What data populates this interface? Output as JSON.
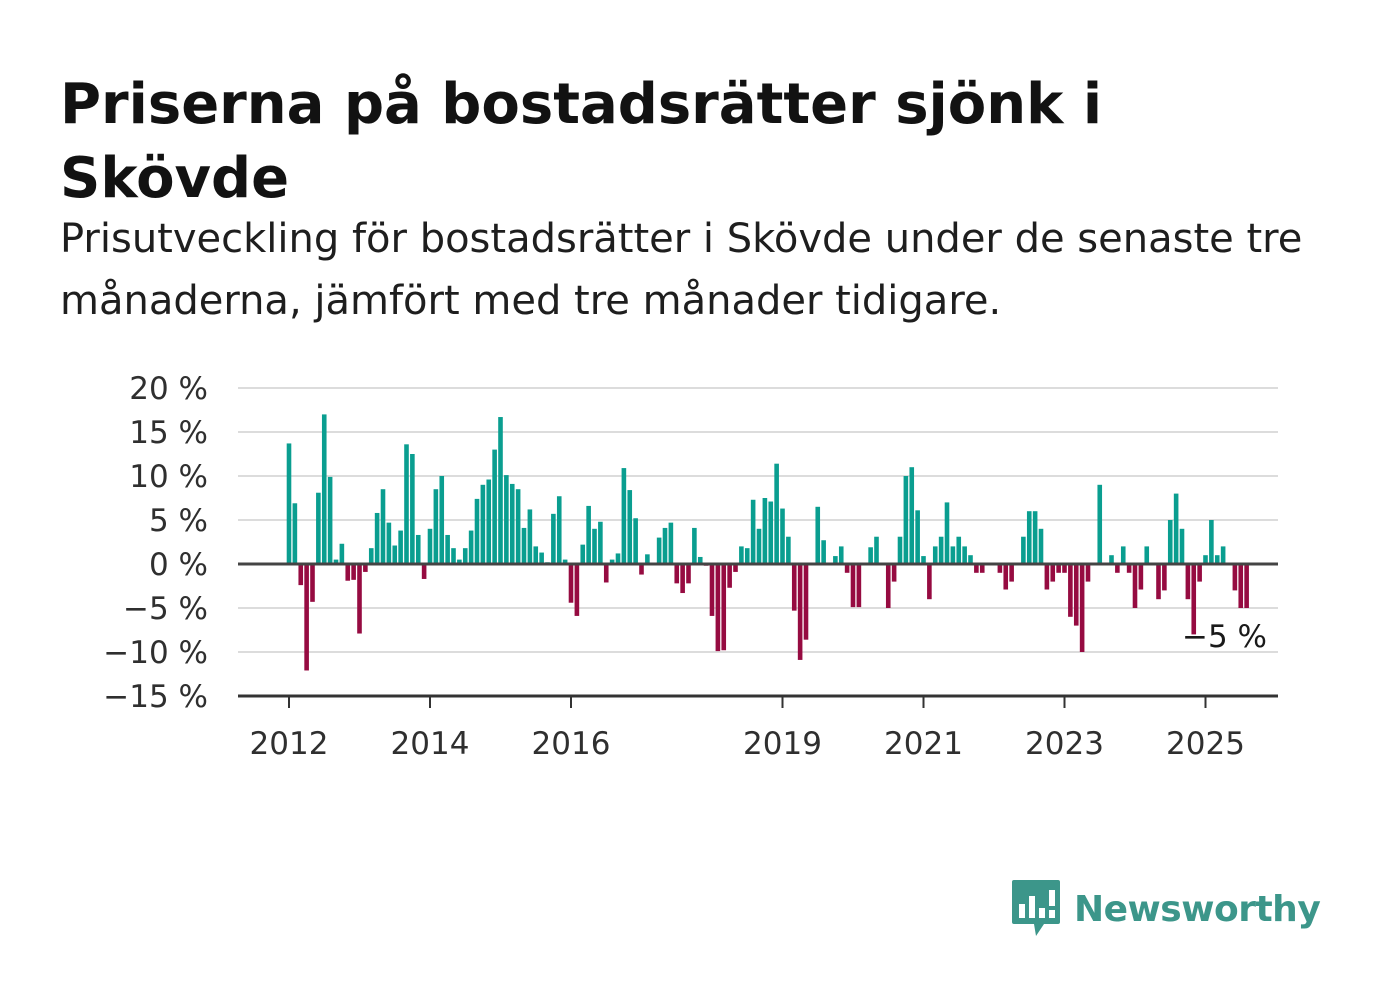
{
  "title": "Priserna på bostadsrätter sjönk i Skövde",
  "subtitle": "Prisutveckling för bostadsrätter i Skövde under de senaste tre månaderna, jämfört med tre månader tidigare.",
  "logo": {
    "text": "Newsworthy",
    "icon": "newsworthy-bar-chart-icon"
  },
  "colors": {
    "positive": "#0a9e90",
    "negative": "#960b41",
    "grid": "#dcdcdc",
    "axis": "#444444",
    "logo": "#3c968a"
  },
  "chart_data": {
    "type": "bar",
    "y_unit": "%",
    "ylim": [
      -15,
      20
    ],
    "y_ticks": [
      20,
      15,
      10,
      5,
      0,
      -5,
      -10,
      -15
    ],
    "y_tick_labels": [
      "20 %",
      "15 %",
      "10 %",
      "5 %",
      "0 %",
      "−5 %",
      "−10 %",
      "−15 %"
    ],
    "x_ticks": [
      {
        "label": "2012",
        "date": "2012-01"
      },
      {
        "label": "2014",
        "date": "2014-01"
      },
      {
        "label": "2016",
        "date": "2016-01"
      },
      {
        "label": "2019",
        "date": "2019-01"
      },
      {
        "label": "2021",
        "date": "2021-01"
      },
      {
        "label": "2023",
        "date": "2023-01"
      },
      {
        "label": "2025",
        "date": "2025-01"
      }
    ],
    "grid": true,
    "start_month": "2012-01",
    "end_label": "−5 %",
    "values": [
      13.7,
      6.9,
      -2.4,
      -12.1,
      -4.3,
      8.1,
      17,
      9.9,
      0.5,
      2.3,
      -1.9,
      -1.8,
      -7.9,
      -0.9,
      1.8,
      5.8,
      8.5,
      4.7,
      2.1,
      3.8,
      13.6,
      12.5,
      3.3,
      -1.7,
      4,
      8.5,
      10,
      3.3,
      1.8,
      0.5,
      1.8,
      3.8,
      7.4,
      9,
      9.6,
      13,
      16.7,
      10.1,
      9.1,
      8.5,
      4.1,
      6.2,
      2,
      1.3,
      0.2,
      5.7,
      7.7,
      0.5,
      -4.4,
      -5.9,
      2.2,
      6.6,
      4,
      4.8,
      -2.1,
      0.5,
      1.2,
      10.9,
      8.4,
      5.2,
      -1.2,
      1.1,
      0,
      3,
      4.1,
      4.7,
      -2.2,
      -3.3,
      -2.2,
      4.1,
      0.8,
      -0.2,
      -5.9,
      -9.9,
      -9.8,
      -2.7,
      -0.9,
      2,
      1.8,
      7.3,
      4,
      7.5,
      7.1,
      11.4,
      6.3,
      3.1,
      -5.3,
      -10.9,
      -8.6,
      0,
      6.5,
      2.7,
      0,
      0.9,
      2,
      -1,
      -4.9,
      -4.9,
      0,
      1.9,
      3.1,
      0,
      -5,
      -2,
      3.1,
      10,
      11,
      6.1,
      0.9,
      -4,
      2,
      3.1,
      7,
      2,
      3.1,
      2,
      1,
      -1,
      -1,
      0,
      0,
      -1,
      -2.9,
      -2,
      0,
      3.1,
      6,
      6,
      4,
      -2.9,
      -2,
      -1,
      -1,
      -6,
      -7,
      -10,
      -2,
      0,
      9,
      0,
      1,
      -1,
      2,
      -1,
      -5,
      -2.9,
      2,
      0,
      -4,
      -3,
      5,
      8,
      4,
      -4,
      -8,
      -2,
      1,
      5,
      1,
      2,
      0,
      -3,
      -5,
      -5
    ]
  }
}
